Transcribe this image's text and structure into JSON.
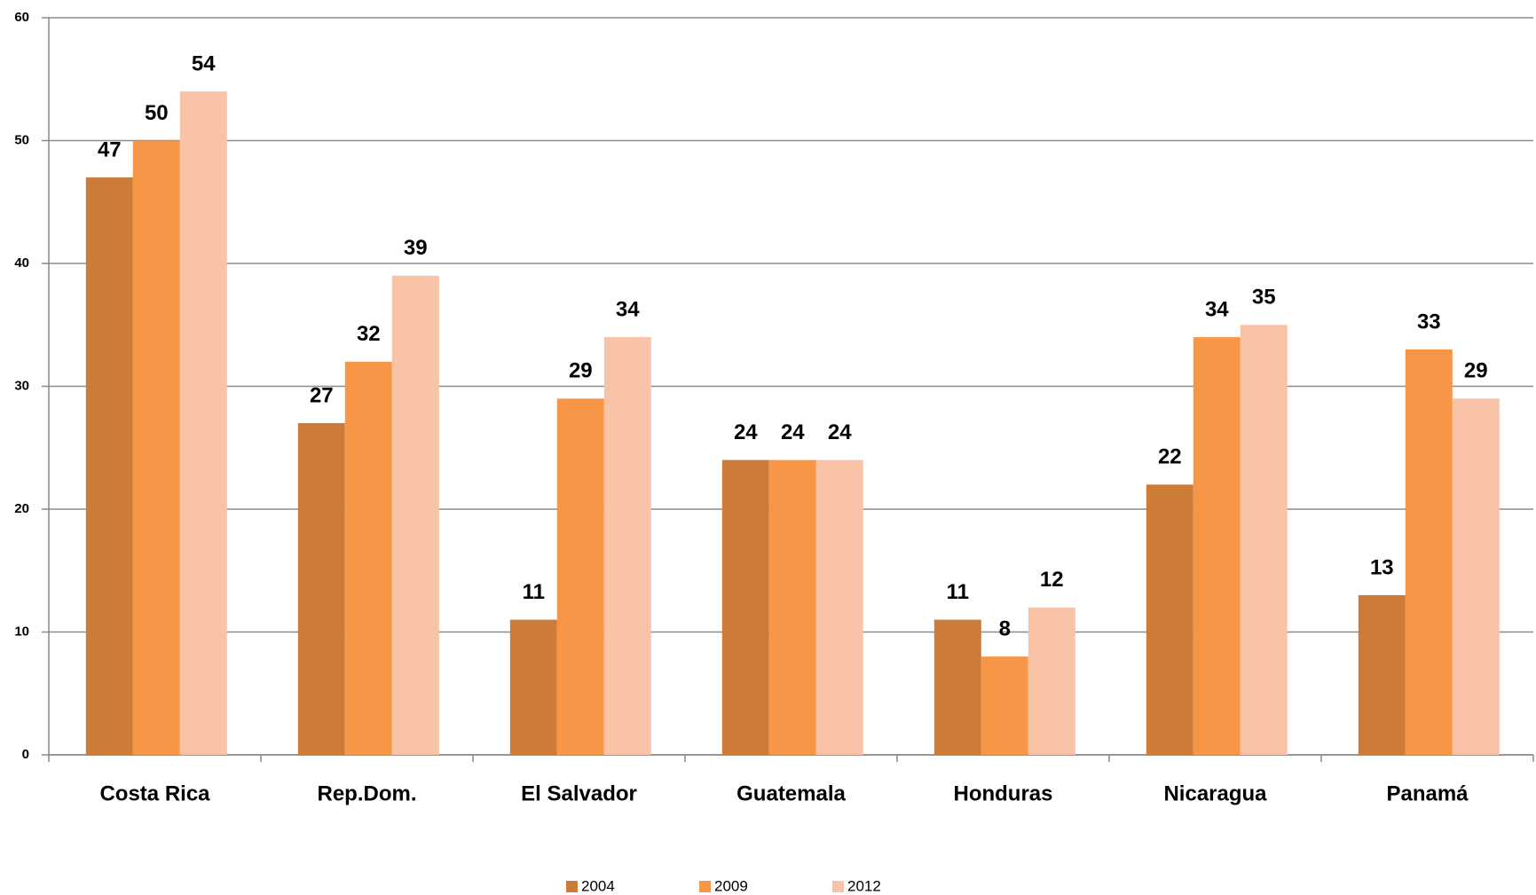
{
  "chart_data": {
    "type": "bar",
    "categories": [
      "Costa Rica",
      "Rep.Dom.",
      "El Salvador",
      "Guatemala",
      "Honduras",
      "Nicaragua",
      "Panamá"
    ],
    "series": [
      {
        "name": "2004",
        "color": "#cd7b38",
        "values": [
          47,
          27,
          11,
          24,
          11,
          22,
          13
        ]
      },
      {
        "name": "2009",
        "color": "#f79646",
        "values": [
          50,
          32,
          29,
          24,
          8,
          34,
          33
        ]
      },
      {
        "name": "2012",
        "color": "#f9c3a8",
        "values": [
          54,
          39,
          34,
          24,
          12,
          35,
          29
        ]
      }
    ],
    "ylim": [
      0,
      60
    ],
    "yticks": [
      0,
      10,
      20,
      30,
      40,
      50,
      60
    ],
    "grid": true
  }
}
